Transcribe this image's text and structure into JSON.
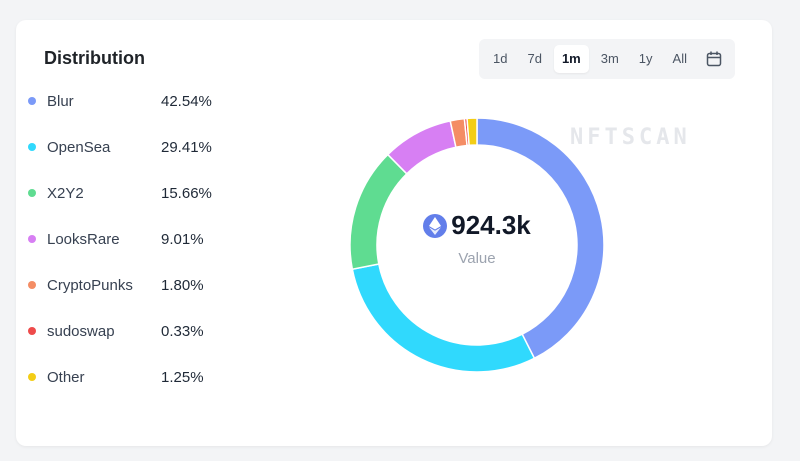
{
  "title": "Distribution",
  "time_ranges": [
    {
      "label": "1d",
      "active": false
    },
    {
      "label": "7d",
      "active": false
    },
    {
      "label": "1m",
      "active": true
    },
    {
      "label": "3m",
      "active": false
    },
    {
      "label": "1y",
      "active": false
    },
    {
      "label": "All",
      "active": false
    }
  ],
  "calendar_icon": "calendar-icon",
  "watermark": "NFTSCAN",
  "center": {
    "icon": "ethereum-icon",
    "value": "924.3k",
    "label": "Value"
  },
  "chart_data": {
    "type": "pie",
    "style": "donut",
    "title": "Distribution",
    "slices": [
      {
        "name": "Blur",
        "value": 42.54,
        "label": "42.54%",
        "color": "#7b9af8"
      },
      {
        "name": "OpenSea",
        "value": 29.41,
        "label": "29.41%",
        "color": "#30d9fd"
      },
      {
        "name": "X2Y2",
        "value": 15.66,
        "label": "15.66%",
        "color": "#5fdc91"
      },
      {
        "name": "LooksRare",
        "value": 9.01,
        "label": "9.01%",
        "color": "#d77ff3"
      },
      {
        "name": "CryptoPunks",
        "value": 1.8,
        "label": "1.80%",
        "color": "#f48d65"
      },
      {
        "name": "sudoswap",
        "value": 0.33,
        "label": "0.33%",
        "color": "#ee4b4b"
      },
      {
        "name": "Other",
        "value": 1.25,
        "label": "1.25%",
        "color": "#f3cd16"
      }
    ],
    "legend_position": "left"
  }
}
